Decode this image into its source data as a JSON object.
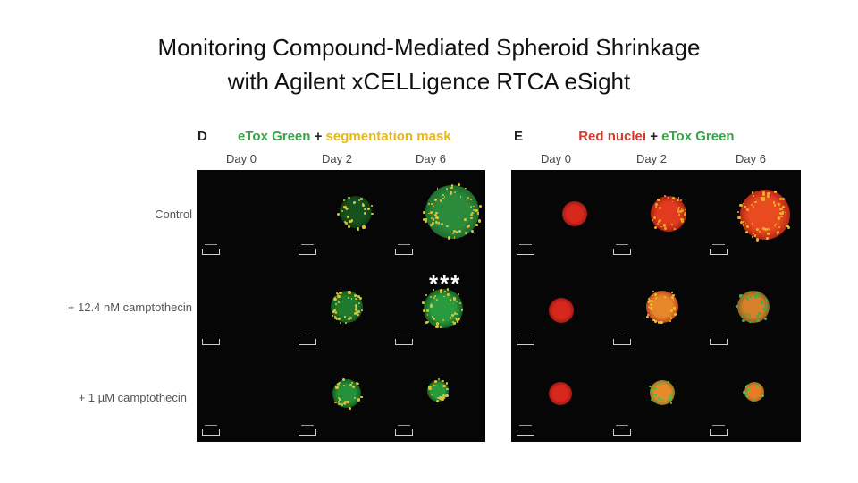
{
  "title": {
    "line1": "Monitoring Compound-Mediated Spheroid Shrinkage",
    "line2": "with Agilent xCELLigence RTCA eSight"
  },
  "panel_d": {
    "letter": "D",
    "label_green": "eTox Green",
    "plus": "+",
    "label_yellow": "segmentation mask",
    "days": [
      "Day 0",
      "Day 2",
      "Day 6"
    ]
  },
  "panel_e": {
    "letter": "E",
    "label_red": "Red nuclei",
    "plus": "+",
    "label_green": "eTox Green",
    "days": [
      "Day 0",
      "Day 2",
      "Day 6"
    ]
  },
  "rows": [
    "Control",
    "+ 12.4 nM camptothecin",
    "+ 1 µM camptothecin"
  ],
  "significance": "***",
  "colors": {
    "green": "#3aa34a",
    "yellow": "#e8b71a",
    "red": "#d43a2c",
    "image_bg": "#060606"
  }
}
